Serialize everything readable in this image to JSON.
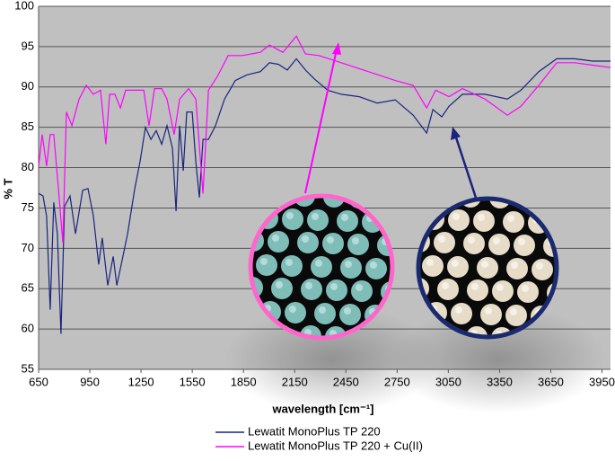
{
  "chart_data": {
    "type": "line",
    "x_label": "wavelength [cm⁻¹]",
    "y_label": "% T",
    "xlim": [
      650,
      4000
    ],
    "xticks": [
      650,
      950,
      1250,
      1550,
      1850,
      2150,
      2450,
      2750,
      3050,
      3350,
      3650,
      3950
    ],
    "ylim": [
      55,
      100
    ],
    "yticks": [
      55,
      60,
      65,
      70,
      75,
      80,
      85,
      90,
      95,
      100
    ],
    "grid": true,
    "legend": "bottom",
    "series": [
      {
        "name": "Lewatit MonoPlus TP 220",
        "color": "#1a237e",
        "x": [
          650,
          676,
          697,
          718,
          739,
          760,
          781,
          802,
          834,
          866,
          908,
          939,
          971,
          1002,
          1023,
          1055,
          1087,
          1108,
          1139,
          1171,
          1213,
          1244,
          1276,
          1308,
          1339,
          1371,
          1402,
          1434,
          1455,
          1476,
          1497,
          1518,
          1550,
          1571,
          1592,
          1613,
          1645,
          1686,
          1739,
          1802,
          1870,
          1949,
          2002,
          2055,
          2107,
          2160,
          2213,
          2265,
          2344,
          2423,
          2528,
          2633,
          2739,
          2844,
          2923,
          2960,
          3012,
          3054,
          3133,
          3264,
          3396,
          3475,
          3580,
          3685,
          3790,
          3895,
          4000
        ],
        "values": [
          76.8,
          76.5,
          74,
          62.4,
          75.7,
          71.8,
          59.4,
          75.2,
          76.5,
          71.8,
          77.2,
          77.4,
          74,
          68,
          71.3,
          65.4,
          69,
          65.4,
          68.5,
          71.8,
          77.4,
          80.7,
          85,
          83.5,
          84.6,
          82.9,
          85.2,
          82.4,
          74.6,
          85.2,
          79.6,
          86.9,
          86.9,
          80.7,
          76.3,
          83.5,
          83.5,
          85.2,
          88.5,
          90.8,
          91.5,
          91.9,
          93,
          92.8,
          92.1,
          93.5,
          92.1,
          91,
          89.6,
          89.1,
          88.8,
          88,
          88.4,
          86.5,
          84.3,
          87.2,
          86.3,
          87.6,
          89.1,
          89.1,
          88.5,
          89.6,
          91.9,
          93.5,
          93.5,
          93.2,
          93.2
        ]
      },
      {
        "name": "Lewatit MonoPlus TP 220 + Cu(II)",
        "color": "#ff00ff",
        "x": [
          650,
          671,
          697,
          718,
          739,
          766,
          792,
          813,
          845,
          887,
          929,
          971,
          1013,
          1044,
          1066,
          1097,
          1129,
          1160,
          1213,
          1266,
          1297,
          1329,
          1371,
          1402,
          1444,
          1476,
          1529,
          1571,
          1613,
          1645,
          1697,
          1760,
          1844,
          1949,
          2002,
          2081,
          2160,
          2213,
          2292,
          2423,
          2581,
          2739,
          2844,
          2923,
          2976,
          3054,
          3133,
          3264,
          3396,
          3475,
          3580,
          3685,
          3790,
          3895,
          4000
        ],
        "values": [
          80.2,
          84.1,
          80.2,
          84.1,
          84.1,
          77.4,
          70.7,
          86.9,
          85.2,
          88.5,
          90.2,
          89.1,
          89.6,
          82.9,
          89.1,
          89.1,
          87.4,
          89.6,
          89.6,
          89.6,
          85.2,
          89.8,
          89.8,
          88.5,
          84.1,
          88.5,
          89.8,
          88.5,
          76.8,
          89.6,
          91.3,
          93.9,
          93.9,
          94.3,
          95.2,
          94.3,
          96.3,
          94.1,
          93.9,
          93,
          91.9,
          90.8,
          90.2,
          87.4,
          89.6,
          88.8,
          89.8,
          88.5,
          86.5,
          87.6,
          90.2,
          93,
          93,
          92.7,
          92.4
        ]
      }
    ]
  }
}
